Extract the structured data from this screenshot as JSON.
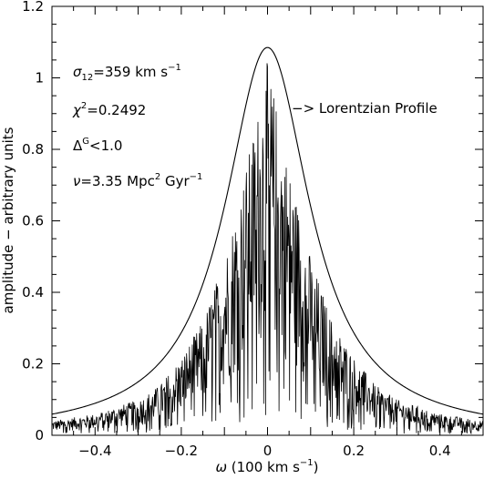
{
  "chart_data": {
    "type": "line",
    "xlabel_prefix": "ω",
    "xlabel_text": " (100 km s",
    "xlabel_sup": "−1",
    "xlabel_close": ")",
    "ylabel": "amplitude − arbitrary units",
    "xlim": [
      -0.5,
      0.5
    ],
    "ylim": [
      0,
      1.2
    ],
    "x_ticks": [
      "−0.4",
      "−0.2",
      "0",
      "0.2",
      "0.4"
    ],
    "x_tick_values": [
      -0.4,
      -0.2,
      0,
      0.2,
      0.4
    ],
    "y_ticks": [
      "0",
      "0.2",
      "0.4",
      "0.6",
      "0.8",
      "1",
      "1.2"
    ],
    "y_tick_values": [
      0,
      0.2,
      0.4,
      0.6,
      0.8,
      1.0,
      1.2
    ],
    "series": [
      {
        "name": "Lorentzian Profile",
        "kind": "smooth",
        "peak": 1.085,
        "center": 0.0,
        "half_width": 0.12
      },
      {
        "kind": "noisy",
        "description_values": "irregular spectrum under the Lorentzian envelope",
        "x": [
          -0.5,
          -0.45,
          -0.4,
          -0.35,
          -0.3,
          -0.25,
          -0.2,
          -0.15,
          -0.1,
          -0.05,
          0,
          0.05,
          0.1,
          0.15,
          0.2,
          0.25,
          0.3,
          0.35,
          0.4,
          0.45,
          0.5
        ],
        "y_max": [
          0.04,
          0.05,
          0.06,
          0.08,
          0.1,
          0.14,
          0.22,
          0.32,
          0.5,
          0.75,
          1.05,
          0.75,
          0.5,
          0.32,
          0.22,
          0.14,
          0.1,
          0.08,
          0.06,
          0.05,
          0.04
        ]
      }
    ],
    "annotations": {
      "sigma_prefix": "σ",
      "sigma_sub": "12",
      "sigma_value": "=359 km s",
      "sigma_sup": "−1",
      "chi_prefix": "χ",
      "chi_sup": "2",
      "chi_value": "=0.2492",
      "delta_prefix": "Δ",
      "delta_sup": "G",
      "delta_value": "<1.0",
      "nu_prefix": "ν",
      "nu_value": "=3.35 Mpc",
      "nu_sup1": "2",
      "nu_value2": " Gyr",
      "nu_sup2": "−1",
      "lorentz_label": "−> Lorentzian Profile"
    },
    "grid": false,
    "legend": "none"
  }
}
